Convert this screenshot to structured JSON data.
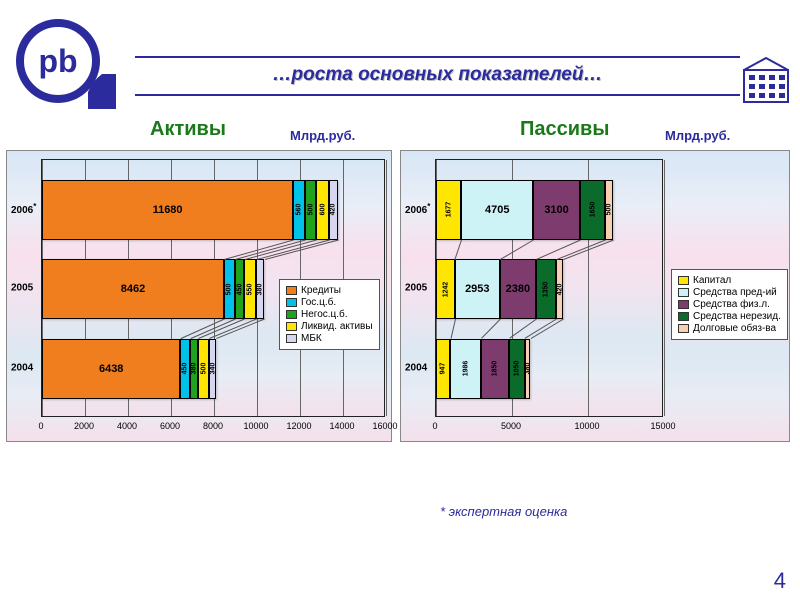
{
  "title": "…роста основных показателей…",
  "sections": {
    "left": "Активы",
    "right": "Пассивы"
  },
  "unit": "Млрд.руб.",
  "footnote": "*  экспертная оценка",
  "page": "4",
  "colors": {
    "orange": "#f07d1e",
    "cyan": "#00c2e8",
    "green": "#1fa31f",
    "yellow": "#ffe600",
    "lav": "#d6d6f0",
    "lcyan": "#cdf3f7",
    "purple": "#7d3c6d",
    "dgreen": "#0b6b2b",
    "peach": "#f6d0b0"
  },
  "assets": {
    "xmax": 16000,
    "xstep": 2000,
    "years": [
      "2004",
      "2005",
      "2006"
    ],
    "has_asterisk": [
      false,
      false,
      true
    ],
    "series": [
      {
        "key": "Кредиты",
        "color": "#f07d1e"
      },
      {
        "key": "Гос.ц.б.",
        "color": "#00c2e8"
      },
      {
        "key": "Негос.ц.б.",
        "color": "#1fa31f"
      },
      {
        "key": "Ликвид. активы",
        "color": "#ffe600"
      },
      {
        "key": "МБК",
        "color": "#d6d6f0"
      }
    ],
    "data": [
      [
        6438,
        450,
        380,
        500,
        340
      ],
      [
        8462,
        500,
        450,
        550,
        380
      ],
      [
        11680,
        560,
        500,
        600,
        420
      ]
    ]
  },
  "liabs": {
    "xmax": 15000,
    "xstep": 5000,
    "years": [
      "2004",
      "2005",
      "2006"
    ],
    "has_asterisk": [
      false,
      false,
      true
    ],
    "series": [
      {
        "key": "Капитал",
        "color": "#ffe600"
      },
      {
        "key": "Средства пред-ий",
        "color": "#cdf3f7"
      },
      {
        "key": "Средства физ.л.",
        "color": "#7d3c6d"
      },
      {
        "key": "Средства нерезид.",
        "color": "#0b6b2b"
      },
      {
        "key": "Долговые обяз-ва",
        "color": "#f6d0b0"
      }
    ],
    "data": [
      [
        947,
        1986,
        1850,
        1050,
        380
      ],
      [
        1242,
        2953,
        2380,
        1350,
        420
      ],
      [
        1677,
        4705,
        3100,
        1650,
        500
      ]
    ]
  }
}
